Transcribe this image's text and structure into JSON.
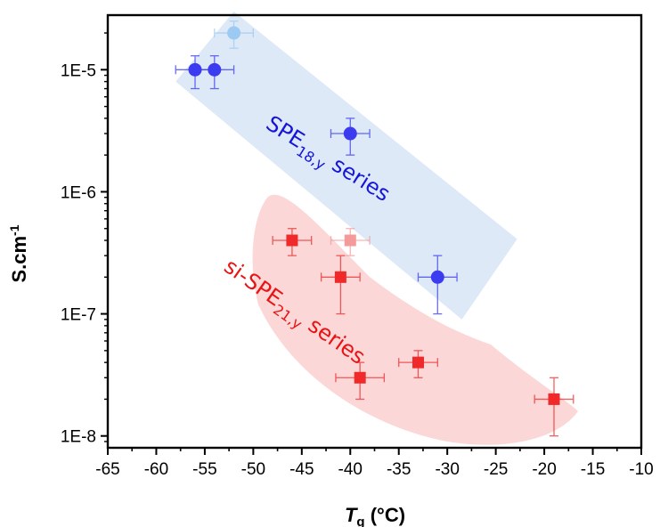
{
  "chart_data": {
    "type": "scatter",
    "title": "",
    "xlabel": {
      "main": "T",
      "sub": "g",
      "unit": " (°C)"
    },
    "ylabel": {
      "main": "S.cm",
      "sup": "-1"
    },
    "xlim": [
      -65,
      -10
    ],
    "ylim": [
      8e-09,
      2.8e-05
    ],
    "yscale": "log",
    "x_ticks": [
      -65,
      -60,
      -55,
      -50,
      -45,
      -40,
      -35,
      -30,
      -25,
      -20,
      -15,
      -10
    ],
    "y_ticks": [
      {
        "value": 1e-08,
        "label": "1E-8"
      },
      {
        "value": 1e-07,
        "label": "1E-7"
      },
      {
        "value": 1e-06,
        "label": "1E-6"
      },
      {
        "value": 1e-05,
        "label": "1E-5"
      }
    ],
    "series": [
      {
        "marker": "circle",
        "color": "#3b3bf0",
        "region_color": "#dbe8f5",
        "label": {
          "pre": "SPE",
          "sub": "18,y",
          "post": " series"
        },
        "label_color": "#1515d8",
        "points": [
          {
            "x": -56,
            "y": 1e-05,
            "xerr": 2,
            "yerr_low": 7e-06,
            "yerr_high": 1.3e-05,
            "color": "#3b3bf0"
          },
          {
            "x": -54,
            "y": 1e-05,
            "xerr": 2,
            "yerr_low": 7e-06,
            "yerr_high": 1.3e-05,
            "color": "#3b3bf0"
          },
          {
            "x": -52,
            "y": 2e-05,
            "xerr": 2,
            "yerr_low": 1.5e-05,
            "yerr_high": 2.5e-05,
            "color": "#9ccaf2"
          },
          {
            "x": -40,
            "y": 3e-06,
            "xerr": 2,
            "yerr_low": 2e-06,
            "yerr_high": 4e-06,
            "color": "#3b3bf0"
          },
          {
            "x": -31,
            "y": 2e-07,
            "xerr": 2,
            "yerr_low": 1e-07,
            "yerr_high": 3e-07,
            "color": "#3b3bf0"
          }
        ]
      },
      {
        "marker": "square",
        "color": "#f02a2a",
        "region_color": "#fbd5d5",
        "label": {
          "pre": "si-SPE",
          "sub": "21,y",
          "post": " series"
        },
        "label_color": "#e81414",
        "points": [
          {
            "x": -46,
            "y": 4e-07,
            "xerr": 2,
            "yerr_low": 3e-07,
            "yerr_high": 5e-07,
            "color": "#f02a2a"
          },
          {
            "x": -40,
            "y": 4e-07,
            "xerr": 2,
            "yerr_low": 3e-07,
            "yerr_high": 5e-07,
            "color": "#f59a9a"
          },
          {
            "x": -41,
            "y": 2e-07,
            "xerr": 2,
            "yerr_low": 1e-07,
            "yerr_high": 3e-07,
            "color": "#f02a2a"
          },
          {
            "x": -33,
            "y": 4e-08,
            "xerr": 2,
            "yerr_low": 3e-08,
            "yerr_high": 5e-08,
            "color": "#f02a2a"
          },
          {
            "x": -39,
            "y": 3e-08,
            "xerr": 2.5,
            "yerr_low": 2e-08,
            "yerr_high": 4e-08,
            "color": "#f02a2a"
          },
          {
            "x": -19,
            "y": 2e-08,
            "xerr": 2,
            "yerr_low": 1e-08,
            "yerr_high": 3e-08,
            "color": "#f02a2a"
          }
        ]
      }
    ],
    "grid": false,
    "legend": "none"
  }
}
